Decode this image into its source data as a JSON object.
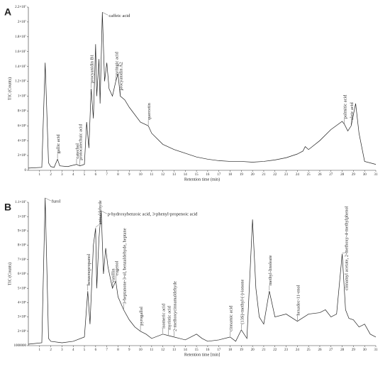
{
  "chart_data": [
    {
      "type": "line",
      "panel": "A",
      "ylabel": "TIC (Counts)",
      "xlabel": "Retention time (min)",
      "color": "#222222",
      "xlim": [
        0,
        31
      ],
      "xticks": [
        1,
        2,
        3,
        4,
        5,
        6,
        7,
        8,
        9,
        10,
        11,
        12,
        13,
        14,
        15,
        16,
        17,
        18,
        19,
        20,
        21,
        22,
        23,
        24,
        25,
        26,
        27,
        28,
        29,
        30,
        31
      ],
      "ylim": [
        0,
        22000000
      ],
      "yticks": [
        0,
        {
          "value": 2000000,
          "label": "2×10⁶"
        },
        {
          "value": 4000000,
          "label": "4×10⁶"
        },
        {
          "value": 6000000,
          "label": "6×10⁶"
        },
        {
          "value": 8000000,
          "label": "8×10⁶"
        },
        {
          "value": 10000000,
          "label": "1×10⁷"
        },
        {
          "value": 12000000,
          "label": "1.2×10⁷"
        },
        {
          "value": 14000000,
          "label": "1.4×10⁷"
        },
        {
          "value": 16000000,
          "label": "1.6×10⁷"
        },
        {
          "value": 18000000,
          "label": "1.8×10⁷"
        },
        {
          "value": 20000000,
          "label": "2×10⁷"
        },
        {
          "value": 22000000,
          "label": "2.2×10⁷"
        }
      ],
      "x": [
        0,
        1.2,
        1.5,
        1.8,
        2,
        2.3,
        2.6,
        2.8,
        3.5,
        4.3,
        4.6,
        5,
        5.2,
        5.4,
        5.6,
        5.8,
        6,
        6.1,
        6.3,
        6.4,
        6.6,
        6.8,
        7,
        7.2,
        7.5,
        7.8,
        8,
        8.2,
        8.6,
        9,
        10,
        10.7,
        11,
        12,
        13,
        14,
        15,
        16,
        17,
        18,
        19,
        20,
        21,
        22,
        23,
        24,
        24.5,
        24.7,
        25,
        26,
        27,
        28,
        28.2,
        28.5,
        28.8,
        29.2,
        29.5,
        30,
        31
      ],
      "values": [
        300000,
        400000,
        14500000,
        1000000,
        500000,
        400000,
        1500000,
        600000,
        500000,
        800000,
        600000,
        800000,
        6500000,
        3000000,
        11000000,
        7000000,
        17000000,
        10000000,
        15000000,
        9000000,
        21300000,
        12000000,
        14500000,
        11000000,
        10000000,
        12000000,
        13000000,
        10000000,
        9500000,
        8500000,
        6500000,
        6000000,
        5000000,
        3500000,
        2800000,
        2300000,
        1800000,
        1500000,
        1300000,
        1200000,
        1200000,
        1100000,
        1200000,
        1400000,
        1700000,
        2200000,
        2600000,
        3200000,
        2800000,
        4000000,
        5500000,
        6600000,
        6200000,
        5300000,
        6000000,
        9000000,
        5000000,
        1200000,
        800000
      ],
      "annotations": [
        {
          "text": "gallic acid",
          "x": 2.6,
          "y": 1500000
        },
        {
          "text": "protocatechuic acid",
          "x": 4.6,
          "y": 600000
        },
        {
          "text": "catechol",
          "x": 4.3,
          "y": 800000
        },
        {
          "text": "procyanidin B1",
          "x": 5.6,
          "y": 11000000
        },
        {
          "text": "caffeic acid",
          "x": 6.6,
          "y": 21300000
        },
        {
          "text": "syringic acid",
          "x": 7.8,
          "y": 12000000
        },
        {
          "text": "procyanidin A2",
          "x": 8.2,
          "y": 10000000
        },
        {
          "text": "quercetin",
          "x": 10.7,
          "y": 6000000
        },
        {
          "text": "palmitic acid",
          "x": 28.2,
          "y": 6200000
        },
        {
          "text": "oleic acid",
          "x": 28.8,
          "y": 6000000
        }
      ]
    },
    {
      "type": "line",
      "panel": "B",
      "ylabel": "TIC (Counts)",
      "xlabel": "Retention time [min]",
      "color": "#222222",
      "xlim": [
        0,
        31
      ],
      "xticks": [
        1,
        2,
        3,
        4,
        5,
        6,
        7,
        8,
        9,
        10,
        11,
        12,
        13,
        14,
        15,
        16,
        17,
        18,
        19,
        20,
        21,
        22,
        23,
        24,
        25,
        26,
        27,
        28,
        29,
        30,
        31
      ],
      "ylim": [
        1000000,
        11000000
      ],
      "yticks": [
        {
          "value": 1000000,
          "label": "1000000"
        },
        {
          "value": 2000000,
          "label": "2×10⁶"
        },
        {
          "value": 3000000,
          "label": "3×10⁶"
        },
        {
          "value": 4000000,
          "label": "4×10⁶"
        },
        {
          "value": 5000000,
          "label": "5×10⁶"
        },
        {
          "value": 6000000,
          "label": "6×10⁶"
        },
        {
          "value": 7000000,
          "label": "7×10⁶"
        },
        {
          "value": 8000000,
          "label": "8×10⁶"
        },
        {
          "value": 9000000,
          "label": "9×10⁶"
        },
        {
          "value": 10000000,
          "label": "1×10⁷"
        },
        {
          "value": 11000000,
          "label": "1.1×10⁷"
        }
      ],
      "x": [
        0,
        1.2,
        1.5,
        1.8,
        2,
        3,
        4,
        5,
        5.3,
        5.5,
        5.8,
        6,
        6.1,
        6.3,
        6.5,
        6.7,
        6.9,
        7.1,
        7.5,
        7.8,
        8,
        8.5,
        9,
        9.5,
        10,
        10.5,
        11,
        12,
        12.5,
        13,
        14,
        15,
        15.5,
        16,
        17,
        18,
        18.5,
        19,
        19.5,
        20,
        20.3,
        20.6,
        21,
        21.5,
        22,
        23,
        24,
        25,
        26,
        26.5,
        27,
        27.5,
        28,
        28.3,
        28.6,
        29,
        29.5,
        30,
        30.5,
        31
      ],
      "values": [
        1100000,
        1200000,
        11300000,
        1500000,
        1300000,
        1200000,
        1300000,
        1600000,
        4800000,
        2500000,
        8000000,
        9200000,
        5000000,
        8500000,
        10400000,
        6000000,
        7800000,
        6500000,
        5000000,
        5500000,
        4400000,
        3500000,
        2800000,
        2300000,
        2000000,
        1800000,
        1500000,
        1800000,
        1700000,
        1600000,
        1400000,
        1800000,
        1500000,
        1300000,
        1400000,
        1600000,
        1300000,
        2100000,
        1500000,
        9800000,
        5000000,
        3000000,
        2500000,
        4800000,
        3000000,
        3200000,
        2700000,
        3200000,
        3300000,
        3500000,
        3000000,
        3200000,
        7400000,
        3500000,
        2900000,
        2800000,
        2300000,
        2500000,
        1800000,
        1600000
      ],
      "annotations": [
        {
          "text": "furol",
          "x": 1.5,
          "y": 11300000
        },
        {
          "text": "benzenepropanol",
          "x": 5.3,
          "y": 4800000
        },
        {
          "text": "anisaldehyde",
          "x": 6.0,
          "y": 9200000
        },
        {
          "text": "p-hydroxybenzoic acid, 3-phenyl-propenoic acid",
          "x": 6.5,
          "y": 10400000
        },
        {
          "text": "vanillin",
          "x": 7.5,
          "y": 5000000
        },
        {
          "text": "eugenol",
          "x": 7.8,
          "y": 5500000
        },
        {
          "text": "3-heptanone-3-ol, benzaldehyde, heptane",
          "x": 8.5,
          "y": 3500000
        },
        {
          "text": "pyrogallol",
          "x": 10,
          "y": 2000000
        },
        {
          "text": "isomeric acid",
          "x": 12,
          "y": 1800000
        },
        {
          "text": "myristic acid",
          "x": 12.5,
          "y": 1700000
        },
        {
          "text": "2-methoxycinnamaldehyde",
          "x": 13,
          "y": 1600000
        },
        {
          "text": "cinnamic acid",
          "x": 18,
          "y": 1600000
        },
        {
          "text": "(13S)-methyl-(-)-ionone",
          "x": 19,
          "y": 2100000
        },
        {
          "text": "methyl-linoleate",
          "x": 21.5,
          "y": 4800000
        },
        {
          "text": "hexadec-11-enol",
          "x": 24,
          "y": 2700000
        },
        {
          "text": "cinnamyl acetate, 2-methoxy-4-methylphenol",
          "x": 28,
          "y": 7400000
        }
      ]
    }
  ]
}
